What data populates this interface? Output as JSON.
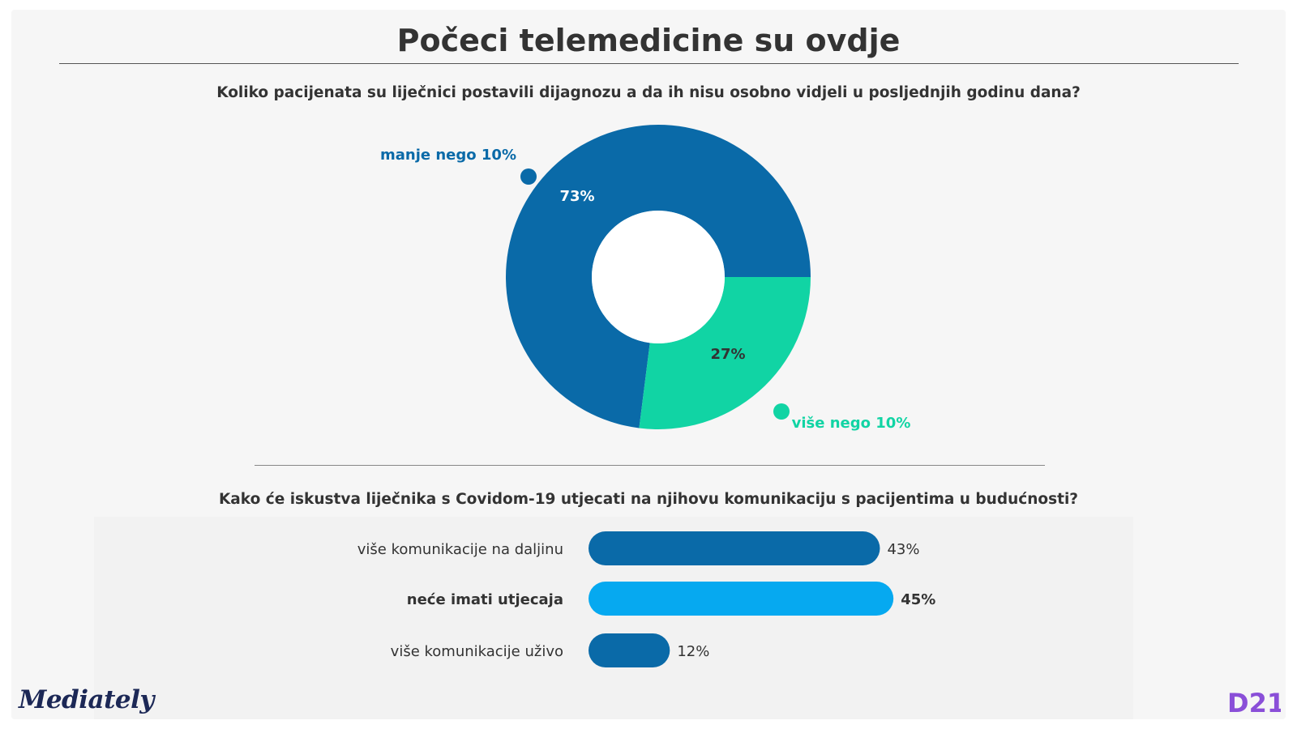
{
  "header": {
    "title": "Počeci telemedicine su ovdje"
  },
  "section1": {
    "question": "Koliko pacijenata su liječnici postavili dijagnozu a da ih nisu osobno vidjeli u posljednjih godinu dana?"
  },
  "section2": {
    "question": "Kako će iskustva liječnika s Covidom-19 utjecati na njihovu komunikaciju s pacijentima u budućnosti?"
  },
  "branding": {
    "left_logo": "Mediately",
    "right_logo": "D21"
  },
  "colors": {
    "dark_blue": "#0a6aa8",
    "green": "#11d4a4",
    "light_blue": "#06a9f0",
    "text": "#333333",
    "purple": "#8a4fd8",
    "navy": "#1c2856"
  },
  "chart_data": [
    {
      "type": "pie",
      "title": "",
      "slices": [
        {
          "name": "manje nego 10%",
          "value": 73,
          "label": "73%",
          "color": "#0a6aa8"
        },
        {
          "name": "više nego 10%",
          "value": 27,
          "label": "27%",
          "color": "#11d4a4"
        }
      ],
      "donut": true
    },
    {
      "type": "bar",
      "orientation": "horizontal",
      "categories": [
        "više komunikacije na daljinu",
        "neće imati utjecaja",
        "više komunikacije uživo"
      ],
      "values": [
        43,
        45,
        12
      ],
      "value_labels": [
        "43%",
        "45%",
        "12%"
      ],
      "colors": [
        "#0a6aa8",
        "#06a9f0",
        "#0a6aa8"
      ],
      "highlighted": [
        false,
        true,
        false
      ],
      "xlim": [
        0,
        100
      ]
    }
  ]
}
